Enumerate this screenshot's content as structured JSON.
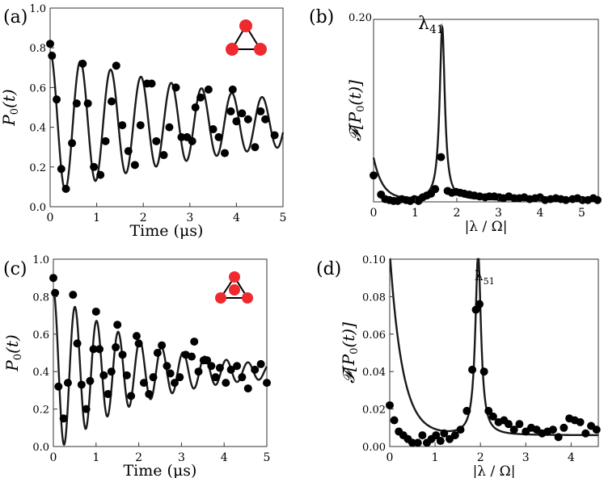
{
  "figure": {
    "panels": [
      {
        "id": "a",
        "label": "(a)"
      },
      {
        "id": "b",
        "label": "(b)"
      },
      {
        "id": "c",
        "label": "(c)"
      },
      {
        "id": "d",
        "label": "(d)"
      }
    ]
  },
  "colors": {
    "data": "#000000",
    "fit": "#1a1a1a",
    "inset_node": "#ee2a2e",
    "inset_edge": "#000000"
  },
  "chart_data": [
    {
      "id": "a",
      "type": "scatter",
      "ylabel": "P0(t)",
      "xlabel": "Time (μs)",
      "xlim": [
        0,
        5
      ],
      "ylim": [
        0,
        1.0
      ],
      "xticks": [
        "0",
        "1",
        "2",
        "3",
        "4",
        "5"
      ],
      "yticks": [
        "0.0",
        "0.2",
        "0.4",
        "0.6",
        "0.8",
        "1.0"
      ],
      "inset": "triangle of three nodes",
      "points": [
        [
          0.0,
          0.82
        ],
        [
          0.04,
          0.76
        ],
        [
          0.14,
          0.54
        ],
        [
          0.24,
          0.19
        ],
        [
          0.34,
          0.09
        ],
        [
          0.47,
          0.32
        ],
        [
          0.57,
          0.52
        ],
        [
          0.7,
          0.72
        ],
        [
          0.81,
          0.52
        ],
        [
          0.94,
          0.2
        ],
        [
          1.08,
          0.16
        ],
        [
          1.19,
          0.33
        ],
        [
          1.32,
          0.53
        ],
        [
          1.42,
          0.71
        ],
        [
          1.55,
          0.41
        ],
        [
          1.68,
          0.28
        ],
        [
          1.82,
          0.21
        ],
        [
          1.94,
          0.41
        ],
        [
          2.08,
          0.62
        ],
        [
          2.18,
          0.62
        ],
        [
          2.28,
          0.33
        ],
        [
          2.44,
          0.26
        ],
        [
          2.56,
          0.4
        ],
        [
          2.7,
          0.6
        ],
        [
          2.82,
          0.35
        ],
        [
          2.94,
          0.35
        ],
        [
          3.05,
          0.33
        ],
        [
          3.12,
          0.5
        ],
        [
          3.23,
          0.55
        ],
        [
          3.4,
          0.59
        ],
        [
          3.5,
          0.39
        ],
        [
          3.62,
          0.35
        ],
        [
          3.75,
          0.27
        ],
        [
          3.88,
          0.48
        ],
        [
          4.0,
          0.43
        ],
        [
          3.92,
          0.59
        ],
        [
          4.12,
          0.47
        ],
        [
          4.25,
          0.44
        ],
        [
          4.4,
          0.3
        ],
        [
          4.52,
          0.48
        ],
        [
          4.62,
          0.44
        ],
        [
          4.82,
          0.36
        ]
      ],
      "fit": {
        "kind": "damped_cosine",
        "offset": 0.42,
        "amp": 0.36,
        "decay": 0.22,
        "omega": 9.66
      }
    },
    {
      "id": "b",
      "type": "scatter",
      "ylabel": "F[P0(t)]",
      "xlabel": "|λ / Ω|",
      "xlim": [
        0,
        5.4
      ],
      "ylim": [
        0,
        0.2
      ],
      "xticks": [
        "0",
        "1",
        "2",
        "3",
        "4",
        "5"
      ],
      "yticks": [
        "0.20"
      ],
      "annotation": "λ41",
      "annotation_x": 1.65,
      "points": [
        [
          0.0,
          0.029
        ],
        [
          0.18,
          0.008
        ],
        [
          0.28,
          0.003
        ],
        [
          0.38,
          0.002
        ],
        [
          0.48,
          0.001
        ],
        [
          0.58,
          0.001
        ],
        [
          0.68,
          0.003
        ],
        [
          0.78,
          0.002
        ],
        [
          0.88,
          0.001
        ],
        [
          0.98,
          0.003
        ],
        [
          1.08,
          0.001
        ],
        [
          1.18,
          0.005
        ],
        [
          1.28,
          0.007
        ],
        [
          1.38,
          0.009
        ],
        [
          1.48,
          0.014
        ],
        [
          1.62,
          0.049
        ],
        [
          1.78,
          0.012
        ],
        [
          1.88,
          0.01
        ],
        [
          1.98,
          0.011
        ],
        [
          2.08,
          0.01
        ],
        [
          2.18,
          0.009
        ],
        [
          2.3,
          0.008
        ],
        [
          2.42,
          0.007
        ],
        [
          2.55,
          0.006
        ],
        [
          2.68,
          0.005
        ],
        [
          2.78,
          0.006
        ],
        [
          2.9,
          0.006
        ],
        [
          3.02,
          0.005
        ],
        [
          3.12,
          0.004
        ],
        [
          3.25,
          0.006
        ],
        [
          3.38,
          0.004
        ],
        [
          3.5,
          0.004
        ],
        [
          3.62,
          0.005
        ],
        [
          3.75,
          0.003
        ],
        [
          3.88,
          0.004
        ],
        [
          4.0,
          0.005
        ],
        [
          4.12,
          0.002
        ],
        [
          4.25,
          0.003
        ],
        [
          4.38,
          0.004
        ],
        [
          4.5,
          0.003
        ],
        [
          4.62,
          0.002
        ],
        [
          4.78,
          0.003
        ],
        [
          4.9,
          0.004
        ],
        [
          5.02,
          0.002
        ],
        [
          5.15,
          0.002
        ],
        [
          5.28,
          0.004
        ],
        [
          5.38,
          0.002
        ]
      ],
      "fit": {
        "kind": "lorentzian_peak",
        "center": 1.65,
        "height": 0.19,
        "width": 0.075,
        "edge_height": 0.046,
        "edge_decay": 0.22,
        "floor": 0.002
      }
    },
    {
      "id": "c",
      "type": "scatter",
      "ylabel": "P0(t)",
      "xlabel": "Time (μs)",
      "xlim": [
        0,
        5
      ],
      "ylim": [
        0,
        1.0
      ],
      "xticks": [
        "0",
        "1",
        "2",
        "3",
        "4",
        "5"
      ],
      "yticks": [
        "0.0",
        "0.2",
        "0.4",
        "0.6",
        "0.8",
        "1.0"
      ],
      "inset": "triangle with center node",
      "points": [
        [
          0.0,
          0.9
        ],
        [
          0.04,
          0.82
        ],
        [
          0.12,
          0.32
        ],
        [
          0.24,
          0.15
        ],
        [
          0.34,
          0.34
        ],
        [
          0.46,
          0.81
        ],
        [
          0.56,
          0.55
        ],
        [
          0.66,
          0.33
        ],
        [
          0.77,
          0.2
        ],
        [
          0.86,
          0.35
        ],
        [
          0.94,
          0.52
        ],
        [
          1.0,
          0.72
        ],
        [
          1.08,
          0.52
        ],
        [
          1.18,
          0.38
        ],
        [
          1.28,
          0.28
        ],
        [
          1.36,
          0.4
        ],
        [
          1.46,
          0.53
        ],
        [
          1.5,
          0.65
        ],
        [
          1.62,
          0.49
        ],
        [
          1.72,
          0.38
        ],
        [
          1.82,
          0.27
        ],
        [
          1.95,
          0.59
        ],
        [
          2.0,
          0.55
        ],
        [
          2.12,
          0.34
        ],
        [
          2.24,
          0.28
        ],
        [
          2.34,
          0.37
        ],
        [
          2.44,
          0.5
        ],
        [
          2.54,
          0.54
        ],
        [
          2.66,
          0.43
        ],
        [
          2.74,
          0.39
        ],
        [
          2.84,
          0.34
        ],
        [
          2.96,
          0.37
        ],
        [
          3.1,
          0.49
        ],
        [
          3.24,
          0.48
        ],
        [
          3.3,
          0.56
        ],
        [
          3.4,
          0.4
        ],
        [
          3.52,
          0.46
        ],
        [
          3.6,
          0.46
        ],
        [
          3.7,
          0.43
        ],
        [
          3.8,
          0.37
        ],
        [
          3.9,
          0.42
        ],
        [
          4.04,
          0.34
        ],
        [
          4.16,
          0.41
        ],
        [
          4.3,
          0.43
        ],
        [
          4.42,
          0.37
        ],
        [
          4.56,
          0.31
        ],
        [
          4.72,
          0.41
        ],
        [
          4.86,
          0.44
        ],
        [
          5.0,
          0.34
        ]
      ],
      "fit": {
        "kind": "damped_cosine",
        "offset": 0.4,
        "amp": 0.44,
        "decay": 0.48,
        "omega": 12.4
      }
    },
    {
      "id": "d",
      "type": "scatter",
      "ylabel": "F[P0(t)]",
      "xlabel": "|λ / Ω|",
      "xlim": [
        0,
        4.6
      ],
      "ylim": [
        0,
        0.1
      ],
      "xticks": [
        "0",
        "1",
        "2",
        "3",
        "4"
      ],
      "yticks": [
        "0.00",
        "0.02",
        "0.04",
        "0.06",
        "0.08",
        "0.10"
      ],
      "annotation": "λ51",
      "annotation_x": 1.95,
      "points": [
        [
          0.0,
          0.022
        ],
        [
          0.1,
          0.014
        ],
        [
          0.2,
          0.008
        ],
        [
          0.3,
          0.006
        ],
        [
          0.4,
          0.004
        ],
        [
          0.5,
          0.002
        ],
        [
          0.62,
          0.002
        ],
        [
          0.72,
          0.006
        ],
        [
          0.82,
          0.002
        ],
        [
          0.92,
          0.004
        ],
        [
          1.02,
          0.006
        ],
        [
          1.12,
          0.003
        ],
        [
          1.2,
          0.007
        ],
        [
          1.32,
          0.004
        ],
        [
          1.44,
          0.006
        ],
        [
          1.56,
          0.009
        ],
        [
          1.7,
          0.019
        ],
        [
          1.82,
          0.041
        ],
        [
          1.9,
          0.073
        ],
        [
          1.98,
          0.076
        ],
        [
          2.08,
          0.04
        ],
        [
          2.18,
          0.019
        ],
        [
          2.28,
          0.016
        ],
        [
          2.4,
          0.013
        ],
        [
          2.52,
          0.014
        ],
        [
          2.62,
          0.012
        ],
        [
          2.74,
          0.009
        ],
        [
          2.86,
          0.012
        ],
        [
          3.0,
          0.008
        ],
        [
          3.12,
          0.01
        ],
        [
          3.24,
          0.009
        ],
        [
          3.36,
          0.007
        ],
        [
          3.48,
          0.008
        ],
        [
          3.6,
          0.009
        ],
        [
          3.72,
          0.005
        ],
        [
          3.84,
          0.01
        ],
        [
          3.96,
          0.015
        ],
        [
          4.08,
          0.014
        ],
        [
          4.2,
          0.013
        ],
        [
          4.32,
          0.007
        ],
        [
          4.44,
          0.011
        ],
        [
          4.56,
          0.009
        ]
      ],
      "fit": {
        "kind": "lorentzian_peak",
        "center": 1.95,
        "height": 0.097,
        "width": 0.075,
        "edge_height": 0.098,
        "edge_decay": 0.28,
        "floor": 0.006
      }
    }
  ]
}
